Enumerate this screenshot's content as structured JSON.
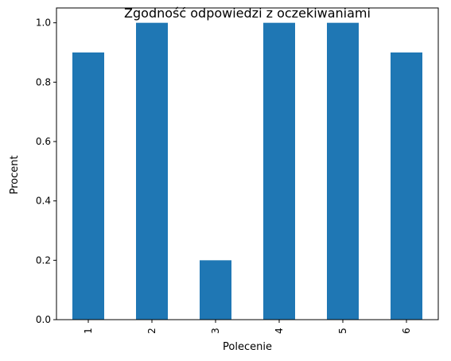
{
  "chart_data": {
    "type": "bar",
    "title": "Zgodność odpowiedzi z oczekiwaniami",
    "xlabel": "Polecenie",
    "ylabel": "Procent",
    "categories": [
      "1",
      "2",
      "3",
      "4",
      "5",
      "6"
    ],
    "values": [
      0.9,
      1.0,
      0.2,
      1.0,
      1.0,
      0.9
    ],
    "ylim": [
      0,
      1.05
    ],
    "yticks": [
      "0.0",
      "0.2",
      "0.4",
      "0.6",
      "0.8",
      "1.0"
    ],
    "bar_color": "#1f77b4",
    "grid": false,
    "legend": "none"
  }
}
